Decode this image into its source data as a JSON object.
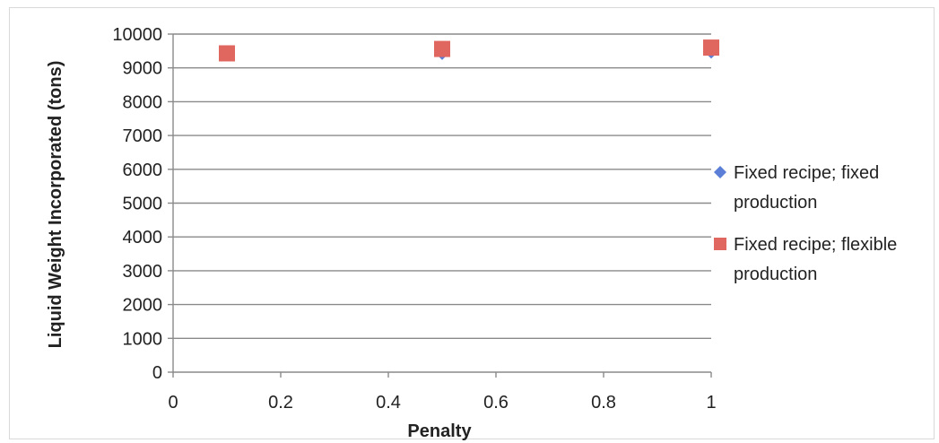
{
  "chart_data": {
    "type": "scatter",
    "xlabel": "Penalty",
    "ylabel": "Liquid Weight Incorporated (tons)",
    "xlim": [
      0,
      1
    ],
    "ylim": [
      0,
      10000
    ],
    "xticks": [
      "0",
      "0.2",
      "0.4",
      "0.6",
      "0.8",
      "1"
    ],
    "yticks": [
      "0",
      "1000",
      "2000",
      "3000",
      "4000",
      "5000",
      "6000",
      "7000",
      "8000",
      "9000",
      "10000"
    ],
    "grid": "horizontal",
    "legend_position": "right",
    "series": [
      {
        "name": "Fixed recipe; fixed production",
        "legend_lines": [
          "Fixed recipe; fixed",
          "production"
        ],
        "marker": "diamond",
        "color": "#5b7fd6",
        "points": [
          {
            "x": 0.1,
            "y": 9380
          },
          {
            "x": 0.5,
            "y": 9420
          },
          {
            "x": 1.0,
            "y": 9460
          }
        ]
      },
      {
        "name": "Fixed recipe; flexible production",
        "legend_lines": [
          "Fixed recipe; flexible",
          "production"
        ],
        "marker": "square",
        "color": "#e06660",
        "points": [
          {
            "x": 0.1,
            "y": 9430
          },
          {
            "x": 0.5,
            "y": 9560
          },
          {
            "x": 1.0,
            "y": 9600
          }
        ]
      }
    ]
  }
}
